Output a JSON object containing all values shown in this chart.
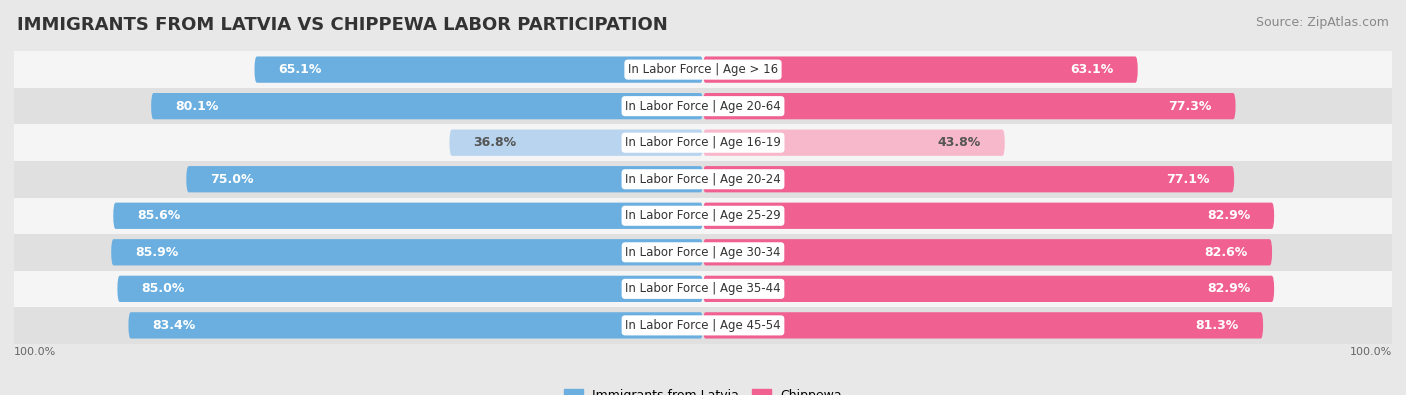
{
  "title": "IMMIGRANTS FROM LATVIA VS CHIPPEWA LABOR PARTICIPATION",
  "source": "Source: ZipAtlas.com",
  "categories": [
    "In Labor Force | Age > 16",
    "In Labor Force | Age 20-64",
    "In Labor Force | Age 16-19",
    "In Labor Force | Age 20-24",
    "In Labor Force | Age 25-29",
    "In Labor Force | Age 30-34",
    "In Labor Force | Age 35-44",
    "In Labor Force | Age 45-54"
  ],
  "latvia_values": [
    65.1,
    80.1,
    36.8,
    75.0,
    85.6,
    85.9,
    85.0,
    83.4
  ],
  "chippewa_values": [
    63.1,
    77.3,
    43.8,
    77.1,
    82.9,
    82.6,
    82.9,
    81.3
  ],
  "latvia_color_strong": "#6aafe0",
  "latvia_color_light": "#b8d4ee",
  "chippewa_color_strong": "#f06090",
  "chippewa_color_light": "#f8b8cc",
  "bg_color": "#e8e8e8",
  "row_bg_light": "#f5f5f5",
  "row_bg_dark": "#e0e0e0",
  "label_bg": "#ffffff",
  "title_fontsize": 13,
  "source_fontsize": 9,
  "bar_label_fontsize": 9,
  "cat_label_fontsize": 8.5,
  "axis_label_fontsize": 8,
  "max_value": 100.0,
  "legend_labels": [
    "Immigrants from Latvia",
    "Chippewa"
  ]
}
